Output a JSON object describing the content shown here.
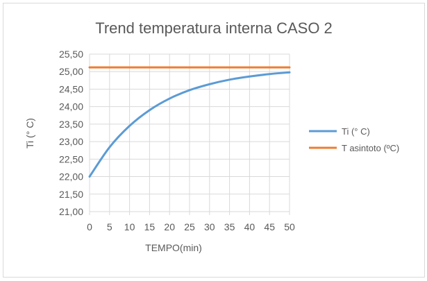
{
  "chart_data": {
    "type": "line",
    "title": "Trend temperatura interna CASO 2",
    "xlabel": "TEMPO(min)",
    "ylabel": "Ti (° C)",
    "xlim": [
      0,
      50
    ],
    "ylim": [
      21,
      25.5
    ],
    "x_ticks": [
      "0",
      "5",
      "10",
      "15",
      "20",
      "25",
      "30",
      "35",
      "40",
      "45",
      "50"
    ],
    "y_ticks": [
      "21,00",
      "21,50",
      "22,00",
      "22,50",
      "23,00",
      "23,50",
      "24,00",
      "24,50",
      "25,00",
      "25,50"
    ],
    "grid": true,
    "legend_position": "right",
    "series": [
      {
        "name": "Ti (° C)",
        "color": "#5b9bd5",
        "x": [
          0,
          5,
          10,
          15,
          20,
          25,
          30,
          35,
          40,
          45,
          50
        ],
        "y": [
          22.0,
          22.84,
          23.45,
          23.9,
          24.23,
          24.47,
          24.64,
          24.77,
          24.86,
          24.93,
          24.98
        ]
      },
      {
        "name": "T asintoto (ºC)",
        "color": "#ed7d31",
        "x": [
          0,
          50
        ],
        "y": [
          25.12,
          25.12
        ]
      }
    ]
  }
}
